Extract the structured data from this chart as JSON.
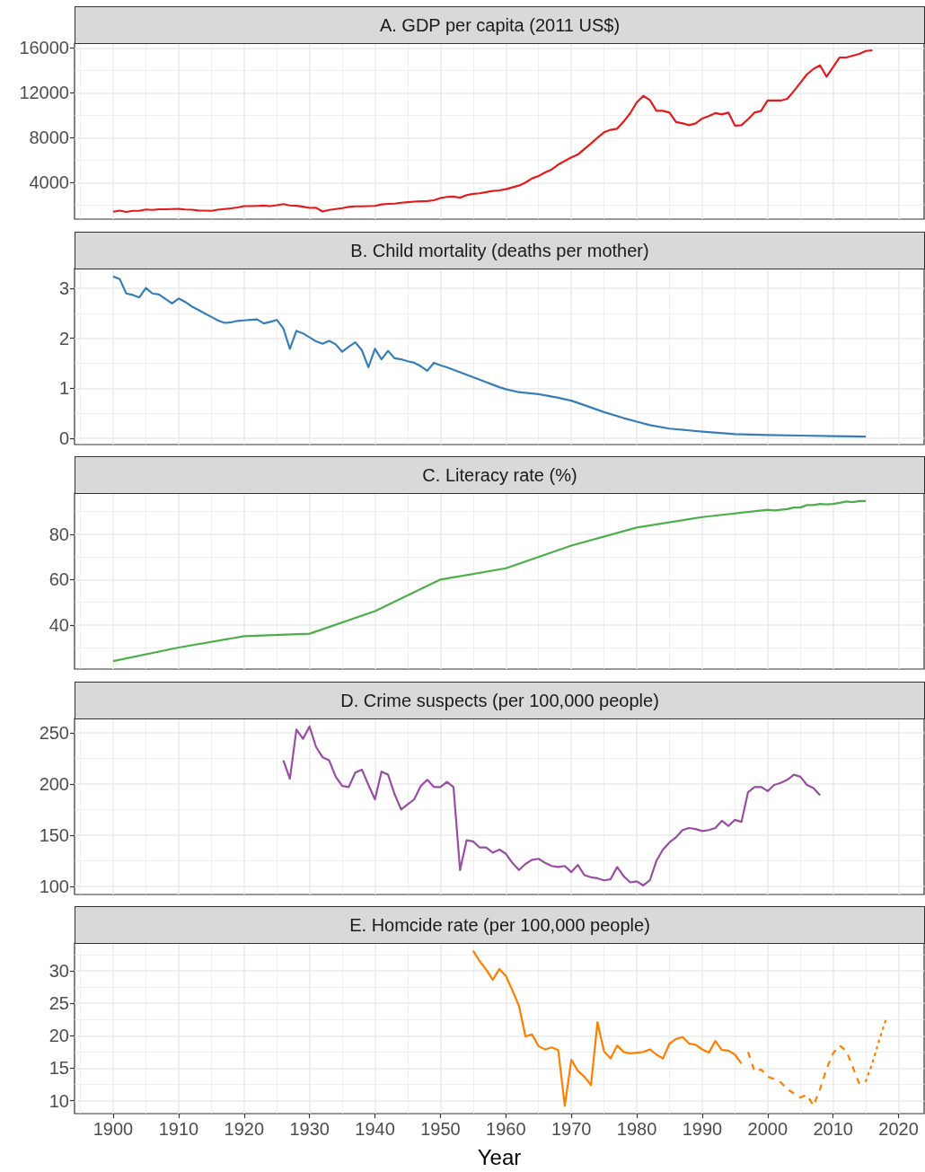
{
  "chart_data": [
    {
      "type": "line",
      "title": "A. GDP per capita (2011 US$)",
      "color": "#e41a1c",
      "x": [
        1900,
        1901,
        1902,
        1903,
        1904,
        1905,
        1906,
        1907,
        1908,
        1909,
        1910,
        1911,
        1912,
        1913,
        1914,
        1915,
        1916,
        1917,
        1918,
        1919,
        1920,
        1921,
        1922,
        1923,
        1924,
        1925,
        1926,
        1927,
        1928,
        1929,
        1930,
        1931,
        1932,
        1933,
        1934,
        1935,
        1936,
        1937,
        1938,
        1939,
        1940,
        1941,
        1942,
        1943,
        1944,
        1945,
        1946,
        1947,
        1948,
        1949,
        1950,
        1951,
        1952,
        1953,
        1954,
        1955,
        1956,
        1957,
        1958,
        1959,
        1960,
        1961,
        1962,
        1963,
        1964,
        1965,
        1966,
        1967,
        1968,
        1969,
        1970,
        1971,
        1972,
        1973,
        1974,
        1975,
        1976,
        1977,
        1978,
        1979,
        1980,
        1981,
        1982,
        1983,
        1984,
        1985,
        1986,
        1987,
        1988,
        1989,
        1990,
        1991,
        1992,
        1993,
        1994,
        1995,
        1996,
        1997,
        1998,
        1999,
        2000,
        2001,
        2002,
        2003,
        2004,
        2005,
        2006,
        2007,
        2008,
        2009,
        2010,
        2011,
        2012,
        2013,
        2014,
        2015,
        2016
      ],
      "values": [
        1400,
        1500,
        1380,
        1480,
        1480,
        1600,
        1560,
        1620,
        1620,
        1640,
        1650,
        1600,
        1580,
        1510,
        1500,
        1480,
        1580,
        1640,
        1700,
        1780,
        1900,
        1900,
        1920,
        1950,
        1900,
        1980,
        2080,
        1960,
        1930,
        1850,
        1740,
        1750,
        1420,
        1560,
        1640,
        1720,
        1830,
        1880,
        1880,
        1900,
        1920,
        2050,
        2100,
        2120,
        2200,
        2250,
        2300,
        2330,
        2350,
        2420,
        2620,
        2720,
        2750,
        2650,
        2880,
        2990,
        3040,
        3150,
        3250,
        3300,
        3410,
        3570,
        3730,
        4000,
        4370,
        4590,
        4900,
        5170,
        5600,
        5920,
        6240,
        6500,
        7000,
        7470,
        8000,
        8480,
        8700,
        8800,
        9440,
        10190,
        11150,
        11730,
        11360,
        10400,
        10400,
        10240,
        9390,
        9280,
        9120,
        9280,
        9710,
        9920,
        10190,
        10080,
        10240,
        9070,
        9120,
        9650,
        10240,
        10400,
        11310,
        11310,
        11310,
        11470,
        12160,
        12900,
        13650,
        14130,
        14450,
        13440,
        14290,
        15150,
        15150,
        15310,
        15470,
        15730,
        15790
      ],
      "xlim": [
        1894.1,
        2023.9
      ],
      "xticks": [
        1900,
        1910,
        1920,
        1930,
        1940,
        1950,
        1960,
        1970,
        1980,
        1990,
        2000,
        2010,
        2020
      ],
      "ylim": [
        740,
        16430
      ],
      "yticks": [
        4000,
        8000,
        12000,
        16000
      ],
      "grid": true,
      "tick_labels": "y"
    },
    {
      "type": "line",
      "title": "B. Child mortality (deaths per mother)",
      "color": "#377eb8",
      "x": [
        1900,
        1901,
        1902,
        1903,
        1904,
        1905,
        1906,
        1907,
        1908,
        1909,
        1910,
        1911,
        1912,
        1913,
        1914,
        1915,
        1916,
        1917,
        1918,
        1919,
        1920,
        1921,
        1922,
        1923,
        1924,
        1925,
        1926,
        1927,
        1928,
        1929,
        1930,
        1931,
        1932,
        1933,
        1934,
        1935,
        1936,
        1937,
        1938,
        1939,
        1940,
        1941,
        1942,
        1943,
        1944,
        1945,
        1946,
        1947,
        1948,
        1949,
        1950,
        1951,
        1952,
        1953,
        1954,
        1955,
        1956,
        1957,
        1958,
        1959,
        1960,
        1962,
        1965,
        1968,
        1970,
        1972,
        1975,
        1978,
        1980,
        1982,
        1985,
        1990,
        1995,
        2000,
        2005,
        2010,
        2015
      ],
      "values": [
        3.24,
        3.19,
        2.9,
        2.87,
        2.82,
        3.01,
        2.9,
        2.88,
        2.79,
        2.7,
        2.8,
        2.73,
        2.64,
        2.57,
        2.5,
        2.43,
        2.36,
        2.31,
        2.32,
        2.35,
        2.36,
        2.37,
        2.38,
        2.3,
        2.33,
        2.37,
        2.2,
        1.79,
        2.15,
        2.1,
        2.02,
        1.94,
        1.89,
        1.95,
        1.88,
        1.73,
        1.83,
        1.92,
        1.76,
        1.42,
        1.79,
        1.58,
        1.75,
        1.6,
        1.58,
        1.54,
        1.51,
        1.44,
        1.35,
        1.51,
        1.46,
        1.42,
        1.37,
        1.32,
        1.27,
        1.22,
        1.17,
        1.12,
        1.07,
        1.02,
        0.98,
        0.92,
        0.88,
        0.81,
        0.75,
        0.66,
        0.52,
        0.4,
        0.33,
        0.26,
        0.19,
        0.13,
        0.08,
        0.06,
        0.05,
        0.04,
        0.03
      ],
      "xlim": [
        1894.1,
        2023.9
      ],
      "xticks": [
        1900,
        1910,
        1920,
        1930,
        1940,
        1950,
        1960,
        1970,
        1980,
        1990,
        2000,
        2010,
        2020
      ],
      "ylim": [
        -0.13,
        3.4
      ],
      "yticks": [
        0,
        1,
        2,
        3
      ],
      "grid": true,
      "tick_labels": "y"
    },
    {
      "type": "line",
      "title": "C. Literacy rate (%)",
      "color": "#4daf4a",
      "x": [
        1900,
        1910,
        1920,
        1930,
        1940,
        1950,
        1960,
        1970,
        1980,
        1990,
        2000,
        2001,
        2002,
        2003,
        2004,
        2005,
        2006,
        2007,
        2008,
        2009,
        2010,
        2011,
        2012,
        2013,
        2014,
        2015
      ],
      "values": [
        24.0,
        30.0,
        35.0,
        36.1,
        46.1,
        60.0,
        65.0,
        75.0,
        83.0,
        87.6,
        90.8,
        90.5,
        90.8,
        91.1,
        91.8,
        91.8,
        92.9,
        92.9,
        93.4,
        93.2,
        93.4,
        93.9,
        94.5,
        94.2,
        94.7,
        94.7
      ],
      "xlim": [
        1894.1,
        2023.9
      ],
      "xticks": [
        1900,
        1910,
        1920,
        1930,
        1940,
        1950,
        1960,
        1970,
        1980,
        1990,
        2000,
        2010,
        2020
      ],
      "ylim": [
        20.5,
        98.2
      ],
      "yticks": [
        40,
        60,
        80
      ],
      "grid": true,
      "tick_labels": "y"
    },
    {
      "type": "line",
      "title": "D. Crime suspects (per 100,000 people)",
      "color": "#984ea3",
      "x": [
        1926,
        1927,
        1928,
        1929,
        1930,
        1931,
        1932,
        1933,
        1934,
        1935,
        1936,
        1937,
        1938,
        1939,
        1940,
        1941,
        1942,
        1943,
        1944,
        1945,
        1946,
        1947,
        1948,
        1949,
        1950,
        1951,
        1952,
        1953,
        1954,
        1955,
        1956,
        1957,
        1958,
        1959,
        1960,
        1961,
        1962,
        1963,
        1964,
        1965,
        1966,
        1967,
        1968,
        1969,
        1970,
        1971,
        1972,
        1973,
        1974,
        1975,
        1976,
        1977,
        1978,
        1979,
        1980,
        1981,
        1982,
        1983,
        1984,
        1985,
        1986,
        1987,
        1988,
        1989,
        1990,
        1991,
        1992,
        1993,
        1994,
        1995,
        1996,
        1997,
        1998,
        1999,
        2000,
        2001,
        2002,
        2003,
        2004,
        2005,
        2006,
        2007,
        2008
      ],
      "values": [
        223,
        205,
        253,
        244,
        256,
        236,
        226,
        223,
        207,
        198,
        197,
        211,
        214,
        199,
        185,
        212,
        209,
        190,
        175,
        180,
        185,
        198,
        204,
        197,
        197,
        202,
        197,
        116,
        145,
        144,
        138,
        138,
        133,
        136,
        132,
        123,
        116,
        122,
        126,
        127,
        123,
        120,
        119,
        120,
        114,
        121,
        111,
        109,
        108,
        106,
        107,
        119,
        110,
        104,
        105,
        101,
        106,
        125,
        136,
        143,
        148,
        155,
        157,
        156,
        154,
        155,
        157,
        164,
        159,
        165,
        163,
        192,
        197,
        197,
        193,
        199,
        201,
        204,
        209,
        207,
        199,
        196,
        189
      ],
      "xlim": [
        1894.1,
        2023.9
      ],
      "xticks": [
        1900,
        1910,
        1920,
        1930,
        1940,
        1950,
        1960,
        1970,
        1980,
        1990,
        2000,
        2010,
        2020
      ],
      "ylim": [
        92.2,
        263.8
      ],
      "yticks": [
        100,
        150,
        200,
        250
      ],
      "grid": true,
      "tick_labels": "y"
    },
    {
      "type": "line",
      "title": "E. Homcide rate (per 100,000 people)",
      "xlabel": "Year",
      "series": [
        {
          "color": "#ff7f00",
          "line_style": "solid",
          "x": [
            1955,
            1956,
            1957,
            1958,
            1959,
            1960,
            1961,
            1962,
            1963,
            1964,
            1965,
            1966,
            1967,
            1968,
            1969,
            1970,
            1971,
            1972,
            1973,
            1974,
            1975,
            1976,
            1977,
            1978,
            1979,
            1980,
            1981,
            1982,
            1983,
            1984,
            1985,
            1986,
            1987,
            1988,
            1989,
            1990,
            1991,
            1992,
            1993,
            1994,
            1995,
            1996
          ],
          "values": [
            33.1,
            31.5,
            30.2,
            28.6,
            30.3,
            29.2,
            27.0,
            24.6,
            19.9,
            20.2,
            18.4,
            17.9,
            18.2,
            17.8,
            9.2,
            16.3,
            14.6,
            13.7,
            12.4,
            22.1,
            17.6,
            16.5,
            18.5,
            17.5,
            17.3,
            17.4,
            17.5,
            17.9,
            17.1,
            16.5,
            18.8,
            19.5,
            19.8,
            18.8,
            18.6,
            17.9,
            17.4,
            19.2,
            17.8,
            17.7,
            17.1,
            15.7
          ]
        },
        {
          "color": "#ff7f00",
          "line_style": "dashed",
          "x": [
            1997,
            1998,
            1999,
            2000,
            2001,
            2002,
            2003,
            2004,
            2005,
            2006,
            2007,
            2008,
            2009,
            2010,
            2011,
            2012,
            2013,
            2014
          ],
          "values": [
            17.5,
            14.5,
            14.8,
            13.7,
            13.3,
            12.8,
            11.8,
            11.1,
            10.5,
            10.9,
            9.2,
            11.8,
            14.9,
            17.3,
            18.5,
            17.7,
            15.2,
            12.6
          ]
        },
        {
          "color": "#ff7f00",
          "line_style": "dotted",
          "x": [
            2015,
            2016,
            2017,
            2018
          ],
          "values": [
            13.0,
            15.8,
            19.2,
            22.3
          ]
        }
      ],
      "xlim": [
        1894.1,
        2023.9
      ],
      "xticks": [
        1900,
        1910,
        1920,
        1930,
        1940,
        1950,
        1960,
        1970,
        1980,
        1990,
        2000,
        2010,
        2020
      ],
      "ylim": [
        8.0,
        34.3
      ],
      "yticks": [
        10,
        15,
        20,
        25,
        30
      ],
      "grid": true
    }
  ]
}
